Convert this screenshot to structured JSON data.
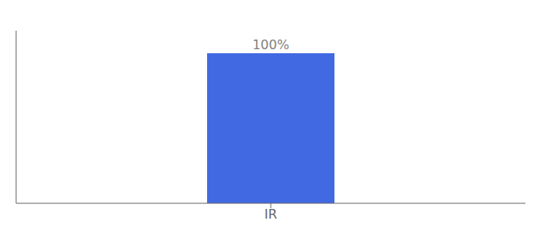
{
  "chart_data": {
    "type": "bar",
    "categories": [
      "IR"
    ],
    "values": [
      100
    ],
    "value_labels": [
      "100%"
    ],
    "color": "#4169e1",
    "ylim": [
      0,
      115
    ],
    "data_labels": true,
    "tick_labels": "x"
  }
}
